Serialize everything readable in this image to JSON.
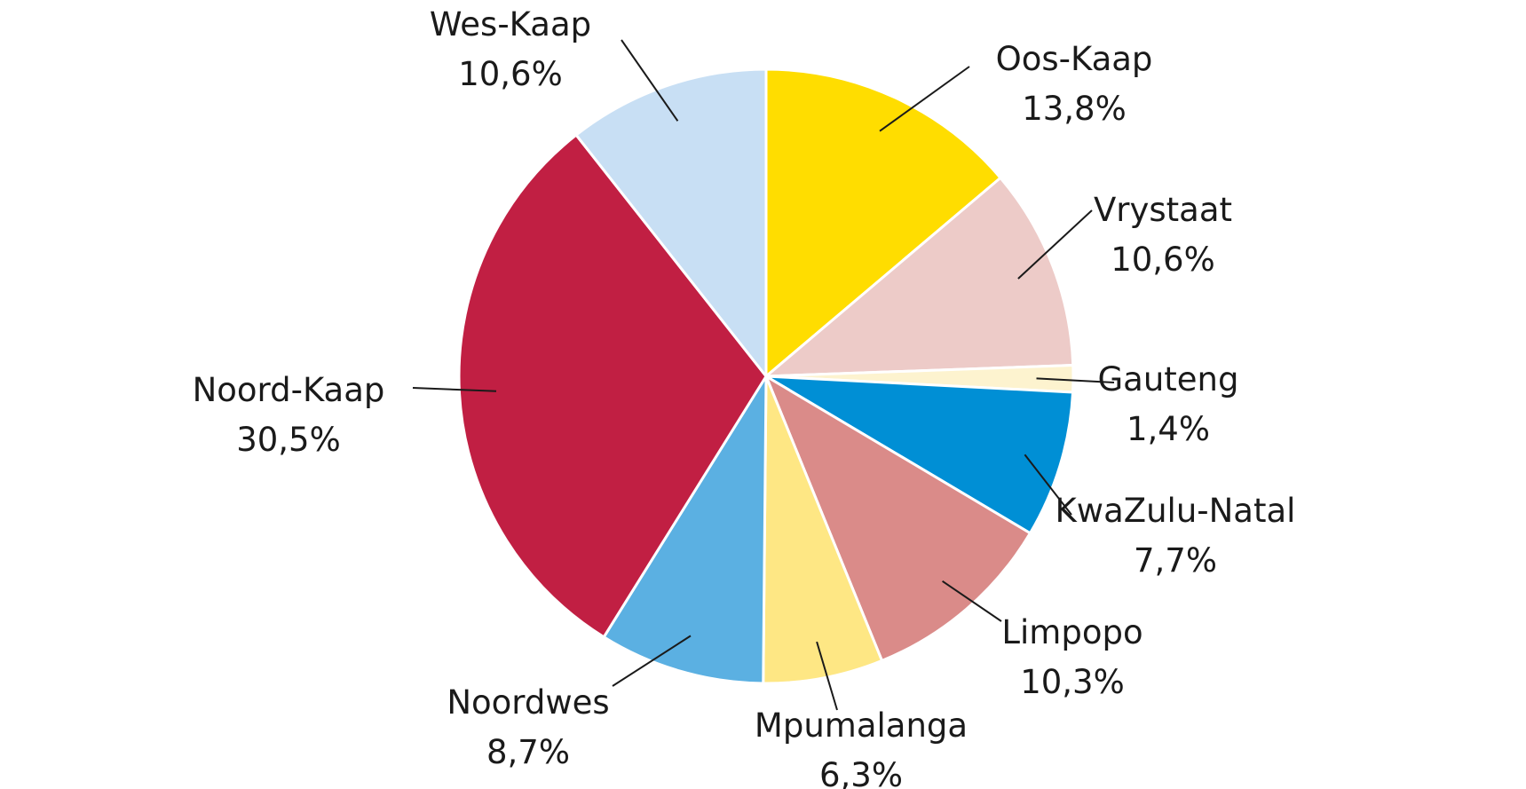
{
  "chart_data": {
    "type": "pie",
    "start": "12 o'clock",
    "direction": "clockwise",
    "slices": [
      {
        "label": "Oos-Kaap",
        "value": 13.8,
        "value_label": "13,8%",
        "color": "#FFDD00"
      },
      {
        "label": "Vrystaat",
        "value": 10.6,
        "value_label": "10,6%",
        "color": "#EDCBC8"
      },
      {
        "label": "Gauteng",
        "value": 1.4,
        "value_label": "1,4%",
        "color": "#FDF3CF"
      },
      {
        "label": "KwaZulu-Natal",
        "value": 7.7,
        "value_label": "7,7%",
        "color": "#008FD5"
      },
      {
        "label": "Limpopo",
        "value": 10.3,
        "value_label": "10,3%",
        "color": "#DA8B89"
      },
      {
        "label": "Mpumalanga",
        "value": 6.3,
        "value_label": "6,3%",
        "color": "#FEE784"
      },
      {
        "label": "Noordwes",
        "value": 8.7,
        "value_label": "8,7%",
        "color": "#5BB0E2"
      },
      {
        "label": "Noord-Kaap",
        "value": 30.5,
        "value_label": "30,5%",
        "color": "#C11F43"
      },
      {
        "label": "Wes-Kaap",
        "value": 10.6,
        "value_label": "10,6%",
        "color": "#C8DFF4"
      }
    ]
  }
}
